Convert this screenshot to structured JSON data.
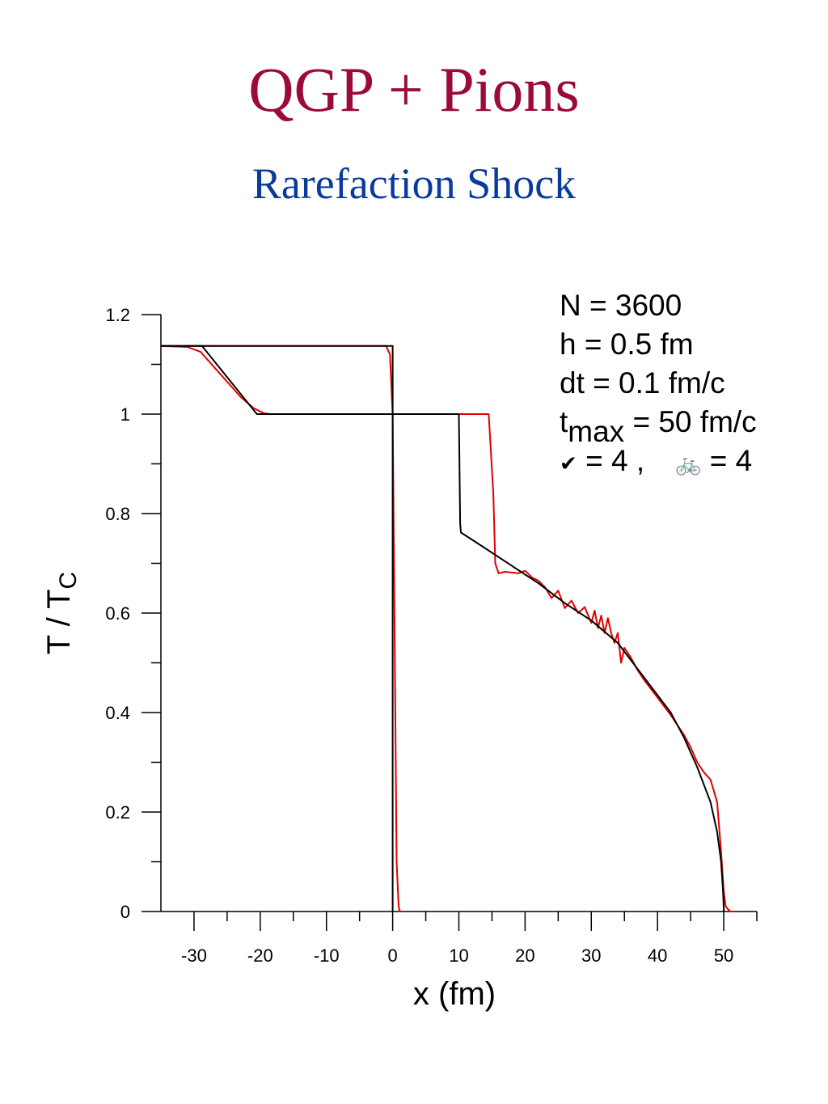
{
  "colors": {
    "title": "#9b0a3a",
    "subtitle": "#0a3a9b",
    "exact": "#000000",
    "numerical": "#e00000"
  },
  "title": "QGP + Pions",
  "subtitle": "Rarefaction Shock",
  "params": {
    "n": "N = 3600",
    "h": "h = 0.5 fm",
    "dt": "dt = 0.1 fm/c",
    "tmax_t": "t",
    "tmax_sub": "max",
    "tmax_rest": " = 50 fm/c",
    "sym1": "✔",
    "sym1_val": " = 4 ,",
    "sym2": "🚲",
    "sym2_val": " = 4"
  },
  "chart_data": {
    "type": "line",
    "title": "",
    "xlabel": "x (fm)",
    "ylabel_main": "T / T",
    "ylabel_sub": "C",
    "xlim": [
      -35,
      55
    ],
    "ylim": [
      0,
      1.2
    ],
    "x_ticks": [
      -30,
      -20,
      -10,
      0,
      10,
      20,
      30,
      40,
      50
    ],
    "x_tick_labels": [
      "-30",
      "-20",
      "-10",
      "0",
      "10",
      "20",
      "30",
      "40",
      "50"
    ],
    "y_ticks": [
      0,
      0.2,
      0.4,
      0.6,
      0.8,
      1.0,
      1.2
    ],
    "y_tick_labels": [
      "0",
      "0.2",
      "0.4",
      "0.6",
      "0.8",
      "1",
      "1.2"
    ],
    "series": [
      {
        "key": "exact",
        "x": [
          -35,
          -28.8,
          -20.5,
          10,
          10.2,
          10.3,
          14,
          18,
          22,
          26,
          30,
          34,
          38,
          42,
          44,
          46,
          48,
          49,
          49.6,
          49.9,
          50,
          50
        ],
        "y": [
          1.137,
          1.137,
          1.0,
          1.0,
          0.78,
          0.762,
          0.73,
          0.695,
          0.66,
          0.62,
          0.585,
          0.54,
          0.47,
          0.4,
          0.35,
          0.29,
          0.22,
          0.16,
          0.1,
          0.04,
          0.005,
          0
        ]
      },
      {
        "key": "exact_initial",
        "x": [
          -35,
          0,
          0,
          0,
          0
        ],
        "y": [
          1.137,
          1.137,
          1.0,
          0.6,
          0
        ]
      },
      {
        "key": "numerical",
        "x": [
          -35,
          -31,
          -29,
          -27,
          -25,
          -23,
          -21,
          -19.5,
          -18.5,
          14.5,
          15.2,
          15.5,
          16,
          17,
          19,
          20,
          21,
          22,
          23,
          24,
          25,
          26,
          27,
          28,
          29,
          30,
          30.5,
          31,
          31.5,
          32,
          32.5,
          33,
          33.5,
          34,
          34.5,
          35,
          35.5,
          36,
          37,
          38,
          40,
          42,
          44,
          45,
          46,
          47,
          48,
          49,
          49.6,
          50,
          50.3,
          50.6,
          51,
          51.5,
          52
        ],
        "y": [
          1.137,
          1.135,
          1.125,
          1.095,
          1.065,
          1.035,
          1.012,
          1.002,
          1.0,
          1.0,
          0.84,
          0.7,
          0.68,
          0.683,
          0.68,
          0.685,
          0.672,
          0.665,
          0.652,
          0.63,
          0.645,
          0.61,
          0.625,
          0.6,
          0.612,
          0.58,
          0.605,
          0.57,
          0.595,
          0.56,
          0.59,
          0.56,
          0.54,
          0.56,
          0.5,
          0.53,
          0.52,
          0.51,
          0.485,
          0.465,
          0.43,
          0.395,
          0.355,
          0.33,
          0.3,
          0.28,
          0.265,
          0.22,
          0.12,
          0.04,
          0.01,
          0.005,
          0,
          0,
          0
        ]
      },
      {
        "key": "numerical_front",
        "x": [
          -35,
          -1,
          -0.4,
          0,
          0.3,
          0.6,
          0.9,
          1.1,
          1.5
        ],
        "y": [
          1.137,
          1.137,
          1.12,
          1.0,
          0.55,
          0.1,
          0.01,
          0,
          0
        ]
      }
    ]
  }
}
